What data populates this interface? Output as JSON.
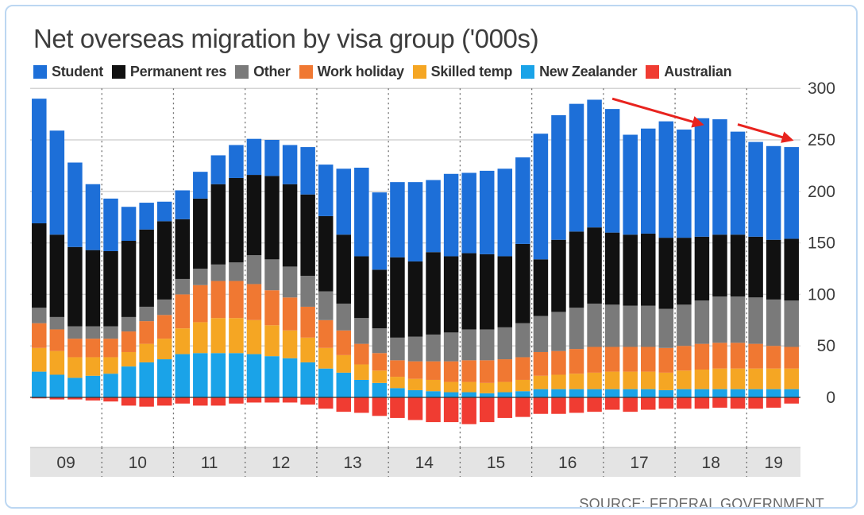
{
  "title": "Net overseas migration by visa group ('000s)",
  "source": "SOURCE: FEDERAL GOVERNMENT",
  "chart_data": {
    "type": "bar",
    "stacked": true,
    "title": "Net overseas migration by visa group ('000s)",
    "xlabel": "",
    "ylabel": "",
    "ylim": [
      -25,
      300
    ],
    "yticks": [
      0,
      50,
      100,
      150,
      200,
      250,
      300
    ],
    "grid": "horizontal",
    "legend_position": "top",
    "year_labels": [
      "09",
      "10",
      "11",
      "12",
      "13",
      "14",
      "15",
      "16",
      "17",
      "18",
      "19"
    ],
    "categories": [
      "2009 Q1",
      "2009 Q2",
      "2009 Q3",
      "2009 Q4",
      "2010 Q1",
      "2010 Q2",
      "2010 Q3",
      "2010 Q4",
      "2011 Q1",
      "2011 Q2",
      "2011 Q3",
      "2011 Q4",
      "2012 Q1",
      "2012 Q2",
      "2012 Q3",
      "2012 Q4",
      "2013 Q1",
      "2013 Q2",
      "2013 Q3",
      "2013 Q4",
      "2014 Q1",
      "2014 Q2",
      "2014 Q3",
      "2014 Q4",
      "2015 Q1",
      "2015 Q2",
      "2015 Q3",
      "2015 Q4",
      "2016 Q1",
      "2016 Q2",
      "2016 Q3",
      "2016 Q4",
      "2017 Q1",
      "2017 Q2",
      "2017 Q3",
      "2017 Q4",
      "2018 Q1",
      "2018 Q2",
      "2018 Q3",
      "2018 Q4",
      "2019 Q1",
      "2019 Q2",
      "2019 Q3"
    ],
    "series": [
      {
        "name": "New Zealander",
        "color": "#1aa3e8",
        "values": [
          25,
          22,
          19,
          21,
          23,
          30,
          34,
          37,
          42,
          43,
          43,
          43,
          42,
          40,
          38,
          34,
          28,
          24,
          17,
          14,
          9,
          7,
          6,
          5,
          5,
          4,
          5,
          6,
          8,
          8,
          8,
          8,
          8,
          8,
          8,
          7,
          8,
          8,
          8,
          8,
          8,
          8,
          8
        ]
      },
      {
        "name": "Skilled temp",
        "color": "#f5a623",
        "values": [
          23,
          23,
          20,
          18,
          16,
          14,
          18,
          20,
          25,
          30,
          34,
          34,
          33,
          30,
          27,
          24,
          20,
          17,
          15,
          12,
          11,
          11,
          11,
          10,
          10,
          10,
          10,
          11,
          13,
          14,
          15,
          16,
          17,
          17,
          17,
          17,
          18,
          19,
          20,
          20,
          20,
          20,
          20
        ]
      },
      {
        "name": "Work holiday",
        "color": "#f07832",
        "values": [
          24,
          21,
          18,
          18,
          18,
          20,
          22,
          23,
          33,
          36,
          36,
          36,
          35,
          34,
          32,
          30,
          27,
          24,
          20,
          17,
          16,
          17,
          18,
          20,
          21,
          22,
          22,
          22,
          23,
          23,
          24,
          25,
          24,
          24,
          24,
          24,
          24,
          25,
          25,
          25,
          24,
          22,
          21
        ]
      },
      {
        "name": "Other",
        "color": "#7a7a7a",
        "values": [
          15,
          12,
          12,
          12,
          12,
          14,
          14,
          15,
          15,
          16,
          16,
          18,
          28,
          30,
          30,
          30,
          28,
          26,
          25,
          24,
          22,
          24,
          26,
          28,
          30,
          30,
          31,
          33,
          35,
          38,
          40,
          42,
          41,
          40,
          40,
          38,
          40,
          42,
          45,
          45,
          45,
          45,
          45
        ]
      },
      {
        "name": "Permanent res",
        "color": "#111111",
        "values": [
          82,
          80,
          77,
          74,
          73,
          74,
          75,
          76,
          58,
          68,
          78,
          82,
          78,
          81,
          80,
          79,
          73,
          67,
          60,
          57,
          78,
          73,
          80,
          74,
          74,
          73,
          69,
          77,
          55,
          70,
          74,
          74,
          70,
          69,
          70,
          69,
          65,
          62,
          60,
          60,
          59,
          58,
          60
        ]
      },
      {
        "name": "Student",
        "color": "#1d6fd8",
        "values": [
          121,
          101,
          82,
          64,
          51,
          33,
          26,
          19,
          28,
          26,
          28,
          32,
          35,
          35,
          38,
          46,
          50,
          64,
          86,
          75,
          73,
          77,
          70,
          80,
          78,
          81,
          85,
          84,
          122,
          121,
          124,
          124,
          120,
          97,
          102,
          113,
          105,
          115,
          112,
          100,
          92,
          91,
          89
        ]
      },
      {
        "name": "Australian",
        "color": "#f03c32",
        "values": [
          -1,
          -2,
          -2,
          -3,
          -4,
          -8,
          -9,
          -8,
          -6,
          -8,
          -8,
          -6,
          -5,
          -5,
          -5,
          -7,
          -11,
          -14,
          -15,
          -18,
          -20,
          -22,
          -24,
          -24,
          -26,
          -24,
          -20,
          -19,
          -16,
          -16,
          -15,
          -14,
          -12,
          -14,
          -12,
          -11,
          -11,
          -11,
          -10,
          -11,
          -11,
          -10,
          -6
        ]
      }
    ],
    "legend_order": [
      "Student",
      "Permanent res",
      "Other",
      "Work holiday",
      "Skilled temp",
      "New Zealander",
      "Australian"
    ],
    "annotations": [
      {
        "type": "arrow",
        "color": "#e8231e",
        "from": {
          "x": "2017 Q1",
          "y": 290
        },
        "to": {
          "x": "2018 Q2",
          "y": 265
        }
      },
      {
        "type": "arrow",
        "color": "#e8231e",
        "from": {
          "x": "2018 Q4",
          "y": 265
        },
        "to": {
          "x": "2019 Q3",
          "y": 250
        }
      }
    ]
  }
}
